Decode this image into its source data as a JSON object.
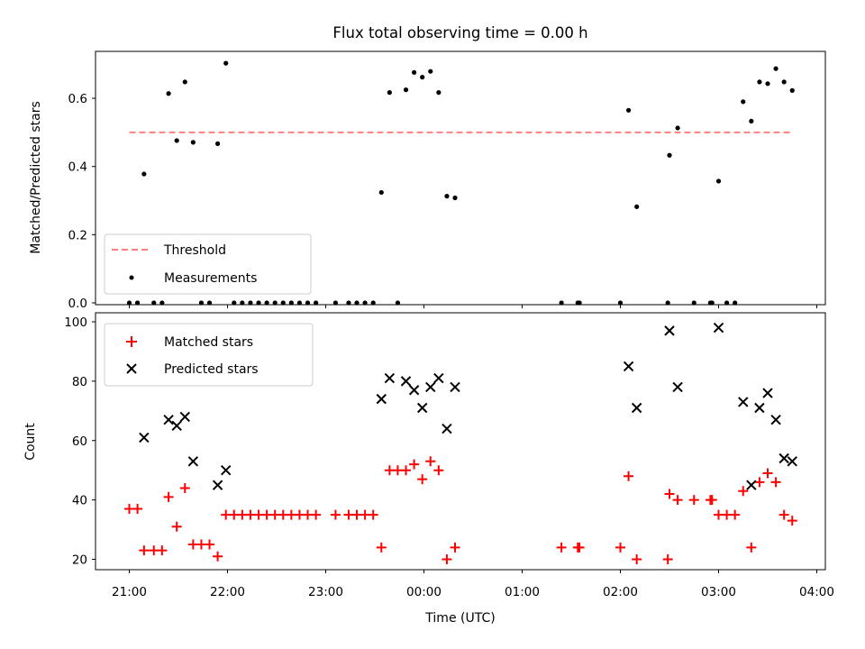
{
  "chart_data": [
    {
      "type": "scatter",
      "title": "Flux total observing time = 0.00 h",
      "xlabel": "",
      "ylabel": "Matched/Predicted stars",
      "ylim": [
        0,
        0.735
      ],
      "xlim": [
        "20:52",
        "04:06"
      ],
      "yticks": [
        "0.0",
        "0.2",
        "0.4",
        "0.6"
      ],
      "legend_position": "lower-left",
      "series": [
        {
          "name": "Threshold",
          "style": "dashed-line",
          "color": "#ff7f7f",
          "points": [
            [
              "21:00",
              0.5
            ],
            [
              "03:45",
              0.5
            ]
          ]
        },
        {
          "name": "Measurements",
          "style": "dot",
          "color": "#000000",
          "points": [
            [
              "21:00",
              0
            ],
            [
              "21:05",
              0
            ],
            [
              "21:09",
              0.378
            ],
            [
              "21:15",
              0
            ],
            [
              "21:20",
              0
            ],
            [
              "21:24",
              0.614
            ],
            [
              "21:29",
              0.476
            ],
            [
              "21:34",
              0.648
            ],
            [
              "21:39",
              0.471
            ],
            [
              "21:44",
              0
            ],
            [
              "21:49",
              0
            ],
            [
              "21:54",
              0.467
            ],
            [
              "21:59",
              0.703
            ],
            [
              "22:04",
              0
            ],
            [
              "22:09",
              0
            ],
            [
              "22:14",
              0
            ],
            [
              "22:19",
              0
            ],
            [
              "22:24",
              0
            ],
            [
              "22:29",
              0
            ],
            [
              "22:34",
              0
            ],
            [
              "22:39",
              0
            ],
            [
              "22:44",
              0
            ],
            [
              "22:49",
              0
            ],
            [
              "22:54",
              0
            ],
            [
              "23:06",
              0
            ],
            [
              "23:14",
              0
            ],
            [
              "23:19",
              0
            ],
            [
              "23:24",
              0
            ],
            [
              "23:29",
              0
            ],
            [
              "23:34",
              0.324
            ],
            [
              "23:39",
              0.617
            ],
            [
              "23:44",
              0
            ],
            [
              "23:49",
              0.625
            ],
            [
              "23:54",
              0.676
            ],
            [
              "23:59",
              0.662
            ],
            [
              "00:04",
              0.679
            ],
            [
              "00:09",
              0.617
            ],
            [
              "00:14",
              0.313
            ],
            [
              "00:19",
              0.308
            ],
            [
              "01:24",
              0
            ],
            [
              "01:34",
              0
            ],
            [
              "01:35",
              0
            ],
            [
              "02:00",
              0
            ],
            [
              "02:05",
              0.565
            ],
            [
              "02:10",
              0.282
            ],
            [
              "02:29",
              0
            ],
            [
              "02:30",
              0.433
            ],
            [
              "02:35",
              0.513
            ],
            [
              "02:45",
              0
            ],
            [
              "02:55",
              0
            ],
            [
              "02:56",
              0
            ],
            [
              "03:00",
              0.357
            ],
            [
              "03:05",
              0
            ],
            [
              "03:10",
              0
            ],
            [
              "03:15",
              0.59
            ],
            [
              "03:20",
              0.533
            ],
            [
              "03:25",
              0.648
            ],
            [
              "03:30",
              0.643
            ],
            [
              "03:35",
              0.687
            ],
            [
              "03:40",
              0.648
            ],
            [
              "03:45",
              0.623
            ]
          ]
        }
      ]
    },
    {
      "type": "scatter",
      "xlabel": "Time (UTC)",
      "ylabel": "Count",
      "ylim": [
        15.7,
        101.5
      ],
      "xlim": [
        "20:52",
        "04:06"
      ],
      "xticks": [
        "21:00",
        "22:00",
        "23:00",
        "00:00",
        "01:00",
        "02:00",
        "03:00",
        "04:00"
      ],
      "yticks": [
        "20",
        "40",
        "60",
        "80",
        "100"
      ],
      "legend_position": "upper-left",
      "series": [
        {
          "name": "Matched stars",
          "marker": "plus",
          "color": "#ff0000",
          "points": [
            [
              "21:00",
              37
            ],
            [
              "21:05",
              37
            ],
            [
              "21:09",
              23
            ],
            [
              "21:15",
              23
            ],
            [
              "21:20",
              23
            ],
            [
              "21:24",
              41
            ],
            [
              "21:29",
              31
            ],
            [
              "21:34",
              44
            ],
            [
              "21:39",
              25
            ],
            [
              "21:44",
              25
            ],
            [
              "21:49",
              25
            ],
            [
              "21:54",
              21
            ],
            [
              "21:59",
              35
            ],
            [
              "22:04",
              35
            ],
            [
              "22:09",
              35
            ],
            [
              "22:14",
              35
            ],
            [
              "22:19",
              35
            ],
            [
              "22:24",
              35
            ],
            [
              "22:29",
              35
            ],
            [
              "22:34",
              35
            ],
            [
              "22:39",
              35
            ],
            [
              "22:44",
              35
            ],
            [
              "22:49",
              35
            ],
            [
              "22:54",
              35
            ],
            [
              "23:06",
              35
            ],
            [
              "23:14",
              35
            ],
            [
              "23:19",
              35
            ],
            [
              "23:24",
              35
            ],
            [
              "23:29",
              35
            ],
            [
              "23:34",
              24
            ],
            [
              "23:39",
              50
            ],
            [
              "23:44",
              50
            ],
            [
              "23:49",
              50
            ],
            [
              "23:54",
              52
            ],
            [
              "23:59",
              47
            ],
            [
              "00:04",
              53
            ],
            [
              "00:09",
              50
            ],
            [
              "00:14",
              20
            ],
            [
              "00:19",
              24
            ],
            [
              "01:24",
              24
            ],
            [
              "01:34",
              24
            ],
            [
              "01:35",
              24
            ],
            [
              "02:00",
              24
            ],
            [
              "02:05",
              48
            ],
            [
              "02:10",
              20
            ],
            [
              "02:29",
              20
            ],
            [
              "02:30",
              42
            ],
            [
              "02:35",
              40
            ],
            [
              "02:45",
              40
            ],
            [
              "02:55",
              40
            ],
            [
              "02:56",
              40
            ],
            [
              "03:00",
              35
            ],
            [
              "03:05",
              35
            ],
            [
              "03:10",
              35
            ],
            [
              "03:15",
              43
            ],
            [
              "03:20",
              24
            ],
            [
              "03:25",
              46
            ],
            [
              "03:30",
              49
            ],
            [
              "03:35",
              46
            ],
            [
              "03:40",
              35
            ],
            [
              "03:45",
              33
            ]
          ]
        },
        {
          "name": "Predicted stars",
          "marker": "x",
          "color": "#000000",
          "points": [
            [
              "21:09",
              61
            ],
            [
              "21:24",
              67
            ],
            [
              "21:29",
              65
            ],
            [
              "21:34",
              68
            ],
            [
              "21:39",
              53
            ],
            [
              "21:54",
              45
            ],
            [
              "21:59",
              50
            ],
            [
              "23:34",
              74
            ],
            [
              "23:39",
              81
            ],
            [
              "23:49",
              80
            ],
            [
              "23:54",
              77
            ],
            [
              "23:59",
              71
            ],
            [
              "00:04",
              78
            ],
            [
              "00:09",
              81
            ],
            [
              "00:14",
              64
            ],
            [
              "00:19",
              78
            ],
            [
              "02:05",
              85
            ],
            [
              "02:10",
              71
            ],
            [
              "02:30",
              97
            ],
            [
              "02:35",
              78
            ],
            [
              "03:00",
              98
            ],
            [
              "03:15",
              73
            ],
            [
              "03:20",
              45
            ],
            [
              "03:25",
              71
            ],
            [
              "03:30",
              76
            ],
            [
              "03:35",
              67
            ],
            [
              "03:40",
              54
            ],
            [
              "03:45",
              53
            ]
          ]
        }
      ]
    }
  ]
}
